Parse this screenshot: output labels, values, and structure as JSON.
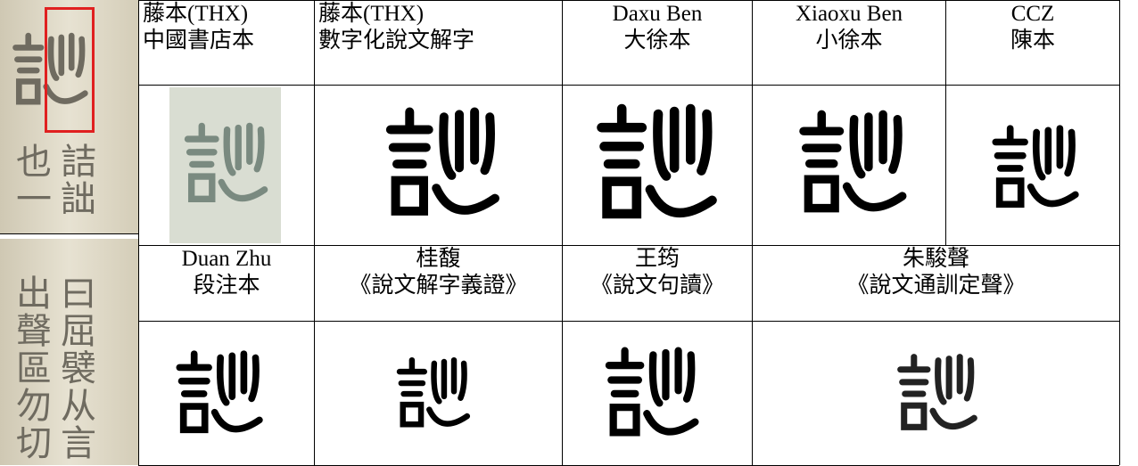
{
  "left_images": [
    {
      "columns": [
        "也一",
        "詰詘"
      ]
    },
    {
      "columns": [
        "出聲區勿切",
        "曰屈襞从言"
      ]
    }
  ],
  "table": {
    "header_row_1": [
      {
        "line1": "藤本(THX)",
        "line2": "中國書店本"
      },
      {
        "line1": "藤本(THX)",
        "line2": "數字化說文解字"
      },
      {
        "line1": "Daxu Ben",
        "line2": "大徐本"
      },
      {
        "line1": "Xiaoxu Ben",
        "line2": "小徐本"
      },
      {
        "line1": "CCZ",
        "line2": "陳本"
      }
    ],
    "header_row_2": [
      {
        "line1": "Duan Zhu",
        "line2": "段注本"
      },
      {
        "line1": "桂馥",
        "line2": "《說文解字義證》"
      },
      {
        "line1": "王筠",
        "line2": "《說文句讀》"
      },
      {
        "line1": "朱駿聲",
        "line2": "《說文通訓定聲》"
      }
    ]
  }
}
